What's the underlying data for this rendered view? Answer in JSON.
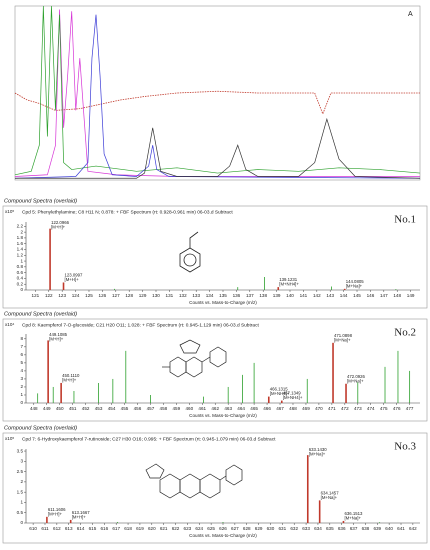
{
  "chart_data": [
    {
      "type": "line",
      "label": "A",
      "xlim": [
        0,
        100
      ],
      "ylim": [
        0,
        100
      ],
      "series": [
        {
          "color": "#c0392b",
          "x": [
            0,
            3,
            6,
            10,
            16,
            20,
            26,
            32,
            40,
            50,
            60,
            70,
            74,
            76,
            78,
            85,
            92,
            100
          ],
          "values": [
            50,
            46,
            44,
            40,
            41,
            43,
            46,
            48,
            50,
            51,
            50,
            50,
            50,
            38,
            50,
            50,
            50,
            50
          ]
        },
        {
          "color": "#d633d6",
          "x": [
            0,
            8,
            10,
            11,
            12,
            13,
            14,
            15,
            16,
            18,
            25,
            40,
            60,
            100
          ],
          "values": [
            2,
            3,
            20,
            98,
            30,
            60,
            97,
            40,
            70,
            5,
            3,
            2,
            2,
            2
          ]
        },
        {
          "color": "#2ca02c",
          "x": [
            0,
            4,
            6,
            7,
            8,
            9,
            10,
            11,
            12,
            14,
            20,
            30,
            40,
            50,
            60,
            70,
            80,
            90,
            100
          ],
          "values": [
            3,
            5,
            20,
            100,
            25,
            100,
            40,
            95,
            10,
            6,
            8,
            5,
            7,
            4,
            6,
            5,
            7,
            6,
            4
          ]
        },
        {
          "color": "#3b3bd6",
          "x": [
            0,
            15,
            18,
            19,
            20,
            21,
            22,
            24,
            30,
            33,
            34,
            35,
            38,
            100
          ],
          "values": [
            1,
            2,
            10,
            70,
            95,
            60,
            15,
            3,
            2,
            8,
            20,
            6,
            2,
            1
          ]
        },
        {
          "color": "#333333",
          "x": [
            0,
            30,
            32,
            34,
            36,
            40,
            50,
            53,
            55,
            57,
            60,
            70,
            74,
            77,
            80,
            84,
            100
          ],
          "values": [
            1,
            1,
            4,
            30,
            5,
            2,
            2,
            8,
            20,
            6,
            2,
            2,
            10,
            35,
            12,
            2,
            1
          ]
        }
      ]
    },
    {
      "type": "spectrum",
      "section_title": "Compound Spectra (overlaid)",
      "header": "Cpd 5: Phenylethylamine; C8 H11 N; 0.878: + FBF Spectrum (rt: 0.928-0.961 min) 06-03.d  Subtract",
      "label": "No.1",
      "y_multiplier": "x10⁵",
      "xlabel": "Counts vs. Mass-to-Charge (m/z)",
      "xlim": [
        120.3,
        149.7
      ],
      "xticks": [
        121,
        122,
        123,
        124,
        125,
        126,
        127,
        128,
        129,
        130,
        131,
        132,
        133,
        134,
        135,
        136,
        137,
        138,
        139,
        140,
        141,
        142,
        143,
        144,
        145,
        146,
        147,
        148,
        149
      ],
      "ylim": [
        0,
        2.35
      ],
      "yticks": [
        0,
        0.2,
        0.4,
        0.6,
        0.8,
        1,
        1.2,
        1.4,
        1.6,
        1.8,
        2,
        2.2
      ],
      "series": [
        {
          "color": "#c0392b",
          "x": [
            122.0966,
            123.0997,
            139.1231,
            144.0805
          ],
          "values": [
            2.12,
            0.26,
            0.1,
            0.04
          ],
          "x_labels": [
            "122.0966",
            "123.0997",
            "139.1231",
            "144.0805"
          ],
          "ions": [
            "[M+H]+",
            "[M+H]+",
            "[M+NH4]+",
            "[M+Na]+"
          ]
        },
        {
          "color": "#2ca02c",
          "x": [
            126.9,
            136.1,
            138.1,
            143.1,
            147.9
          ],
          "values": [
            0.04,
            0.1,
            0.45,
            0.12,
            0.03
          ]
        }
      ]
    },
    {
      "type": "spectrum",
      "section_title": "Compound Spectra (overlaid)",
      "header": "Cpd 8: Kaempferol 7-O-glucoside; C21 H20 O11; 1.028: + FBF Spectrum (rt: 0.945-1.129 min) 06-03.d  Subtract",
      "label": "No.2",
      "y_multiplier": "x10⁴",
      "xlabel": "Counts vs. Mass-to-Charge (m/z)",
      "xlim": [
        447.4,
        477.8
      ],
      "xticks": [
        448,
        449,
        450,
        451,
        452,
        453,
        454,
        455,
        456,
        457,
        458,
        459,
        460,
        461,
        462,
        463,
        464,
        465,
        466,
        467,
        468,
        469,
        470,
        471,
        472,
        473,
        474,
        475,
        476,
        477
      ],
      "ylim": [
        0,
        8.6
      ],
      "yticks": [
        0,
        1,
        2,
        3,
        4,
        5,
        6,
        7,
        8
      ],
      "series": [
        {
          "color": "#c0392b",
          "x": [
            449.1085,
            450.111,
            466.1315,
            467.1349,
            471.0898,
            472.0926
          ],
          "values": [
            7.8,
            2.5,
            0.8,
            0.3,
            7.5,
            2.4
          ],
          "x_labels": [
            "449.1085",
            "450.1110",
            "466.1315",
            "467.1349",
            "471.0898",
            "472.0926"
          ],
          "ions": [
            "[M+H]+",
            "[M+H]+",
            "[M+NH4]+",
            "[M+NH4]+",
            "[M+Na]+",
            "[M+Na]+"
          ]
        },
        {
          "color": "#2ca02c",
          "x": [
            448.3,
            449.5,
            451.1,
            453.0,
            454.1,
            455.1,
            457.0,
            461.1,
            463.0,
            464.1,
            465.0,
            469.1,
            473.0,
            475.1,
            476.1,
            477.0
          ],
          "values": [
            1.2,
            2,
            1.5,
            2.5,
            3,
            6.5,
            1,
            0.8,
            2,
            3.5,
            5,
            3,
            2.6,
            4.5,
            6.5,
            4
          ]
        }
      ]
    },
    {
      "type": "spectrum",
      "section_title": "Compound Spectra (overlaid)",
      "header": "Cpd 7: 6-Hydroxykaempferol 7-rutinoside; C27 H30 O16; 0.995: + FBF Spectrum (rt: 0.945-1.079 min) 06-03.d  Subtract",
      "label": "No.3",
      "y_multiplier": "x10⁵",
      "xlabel": "Counts vs. Mass-to-Charge (m/z)",
      "xlim": [
        609.4,
        642.6
      ],
      "xticks": [
        610,
        611,
        612,
        613,
        614,
        615,
        616,
        617,
        618,
        619,
        620,
        621,
        622,
        623,
        624,
        625,
        626,
        627,
        628,
        629,
        630,
        631,
        632,
        633,
        634,
        635,
        636,
        637,
        638,
        639,
        640,
        641,
        642
      ],
      "ylim": [
        0,
        3.6
      ],
      "yticks": [
        0,
        0.5,
        1,
        1.5,
        2,
        2.5,
        3,
        3.5
      ],
      "series": [
        {
          "color": "#c0392b",
          "x": [
            611.1606,
            613.1667,
            633.143,
            634.1457,
            636.1513
          ],
          "values": [
            0.3,
            0.15,
            3.3,
            1.1,
            0.1
          ],
          "x_labels": [
            "611.1606",
            "613.1667",
            "633.1430",
            "634.1457",
            "636.1513"
          ],
          "ions": [
            "[M+H]+",
            "[M+H]+",
            "[M+Na]+",
            "[M+Na]+",
            "[M+Na]+"
          ]
        },
        {
          "color": "#2ca02c",
          "x": [
            617.1,
            626.0,
            639.2
          ],
          "values": [
            0.05,
            0.05,
            0.04
          ]
        }
      ]
    }
  ]
}
